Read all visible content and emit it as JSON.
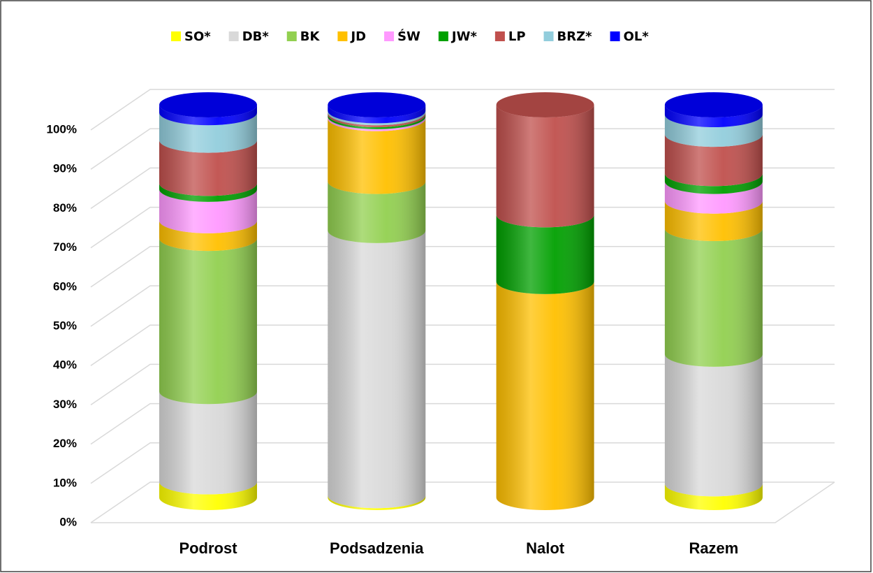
{
  "chart_data": {
    "type": "bar3d_stacked_cylinder",
    "categories": [
      "Podrost",
      "Podsadzenia",
      "Nalot",
      "Razem"
    ],
    "series": [
      {
        "name": "SO*",
        "color": "#ffff00",
        "values": [
          4,
          0.5,
          0,
          3.5
        ]
      },
      {
        "name": "DB*",
        "color": "#d9d9d9",
        "values": [
          23,
          67.5,
          0,
          33
        ]
      },
      {
        "name": "BK",
        "color": "#92d050",
        "values": [
          39,
          12.5,
          0,
          32
        ]
      },
      {
        "name": "JD",
        "color": "#ffc000",
        "values": [
          4.5,
          16,
          55,
          7
        ]
      },
      {
        "name": "ŚW",
        "color": "#ff99ff",
        "values": [
          8,
          0.5,
          0,
          5
        ]
      },
      {
        "name": "JW*",
        "color": "#00a000",
        "values": [
          1.5,
          0.5,
          17,
          2
        ]
      },
      {
        "name": "LP",
        "color": "#c0504d",
        "values": [
          11,
          0.5,
          28,
          10
        ]
      },
      {
        "name": "BRZ*",
        "color": "#92cddc",
        "values": [
          7,
          0.5,
          0,
          5
        ]
      },
      {
        "name": "OL*",
        "color": "#0000ff",
        "values": [
          2,
          1.5,
          0,
          2.5
        ]
      }
    ],
    "ylim": [
      0,
      100
    ],
    "yticks": [
      {
        "value": 0,
        "label": "0%"
      },
      {
        "value": 10,
        "label": "10%"
      },
      {
        "value": 20,
        "label": "20%"
      },
      {
        "value": 30,
        "label": "30%"
      },
      {
        "value": 40,
        "label": "40%"
      },
      {
        "value": 50,
        "label": "50%"
      },
      {
        "value": 60,
        "label": "60%"
      },
      {
        "value": 70,
        "label": "70%"
      },
      {
        "value": 80,
        "label": "80%"
      },
      {
        "value": 90,
        "label": "90%"
      },
      {
        "value": 100,
        "label": "100%"
      }
    ],
    "grid": true,
    "legend": "top"
  }
}
